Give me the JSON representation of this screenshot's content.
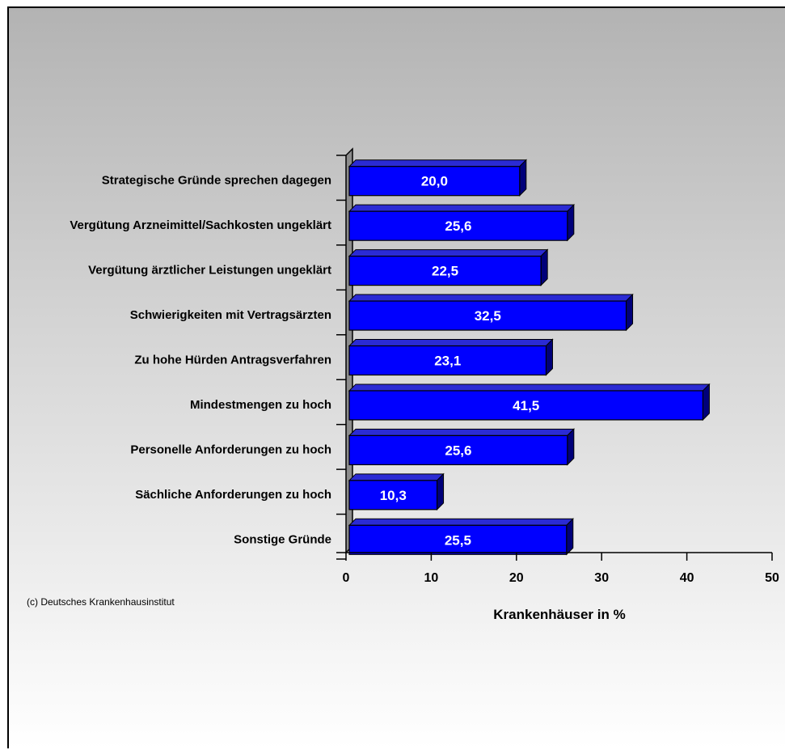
{
  "chart_data": {
    "type": "bar",
    "orientation": "horizontal",
    "categories": [
      "Strategische Gründe sprechen dagegen",
      "Vergütung Arzneimittel/Sachkosten ungeklärt",
      "Vergütung ärztlicher Leistungen ungeklärt",
      "Schwierigkeiten mit Vertragsärzten",
      "Zu hohe Hürden Antragsverfahren",
      "Mindestmengen zu hoch",
      "Personelle Anforderungen zu hoch",
      "Sächliche Anforderungen zu hoch",
      "Sonstige Gründe"
    ],
    "values": [
      20.0,
      25.6,
      22.5,
      32.5,
      23.1,
      41.5,
      25.6,
      10.3,
      25.5
    ],
    "value_labels": [
      "20,0",
      "25,6",
      "22,5",
      "32,5",
      "23,1",
      "41,5",
      "25,6",
      "10,3",
      "25,5"
    ],
    "title": "",
    "xlabel": "Krankenhäuser in %",
    "ylabel": "",
    "xlim": [
      0,
      50
    ],
    "xticks": [
      "0",
      "10",
      "20",
      "30",
      "40",
      "50"
    ],
    "grid": false,
    "legend": "none",
    "bar_color": "#0000ff",
    "bar_side_color": "#00007a",
    "bar_top_color": "#2b2bd4",
    "wall_color": "#8c8c8c"
  },
  "footnote": "(c) Deutsches Krankenhausinstitut"
}
